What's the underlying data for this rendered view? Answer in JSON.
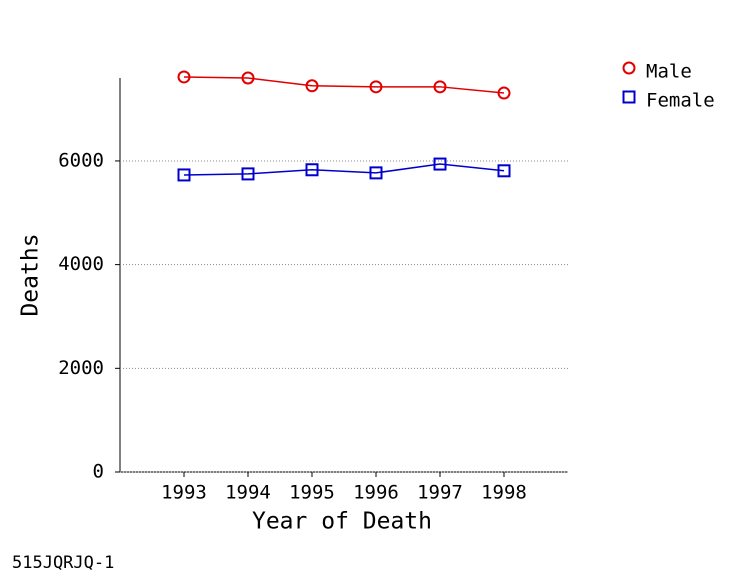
{
  "chart_data": {
    "type": "line",
    "x_label": "Year of Death",
    "y_label": "Deaths",
    "x": [
      1993,
      1994,
      1995,
      1996,
      1997,
      1998
    ],
    "series": [
      {
        "name": "Male",
        "color": "#e00000",
        "marker": "circle",
        "values": [
          7620,
          7600,
          7450,
          7430,
          7430,
          7310
        ]
      },
      {
        "name": "Female",
        "color": "#0000cc",
        "marker": "square",
        "values": [
          5730,
          5750,
          5830,
          5770,
          5940,
          5810
        ]
      }
    ],
    "xlim": [
      1992,
      1999
    ],
    "xticks": [
      1993,
      1994,
      1995,
      1996,
      1997,
      1998
    ],
    "ylim": [
      0,
      7600
    ],
    "yticks": [
      0,
      2000,
      4000,
      6000
    ],
    "grid": true,
    "legend": "top-right",
    "footnote": "515JQRJQ-1"
  }
}
